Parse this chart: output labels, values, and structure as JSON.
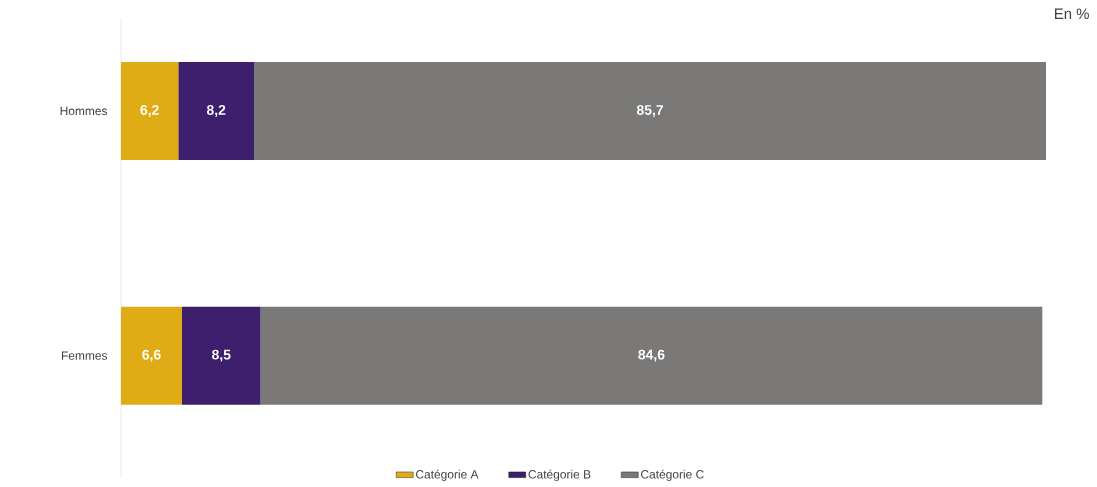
{
  "chart_data": {
    "type": "bar",
    "orientation": "horizontal",
    "stacked": true,
    "categories": [
      "Hommes",
      "Femmes"
    ],
    "series": [
      {
        "name": "Catégorie A",
        "color": "#e0ac16",
        "values": [
          6.2,
          6.6
        ],
        "value_labels": [
          "6,2",
          "6,6"
        ]
      },
      {
        "name": "Catégorie B",
        "color": "#3d1f6e",
        "values": [
          8.2,
          8.5
        ],
        "value_labels": [
          "8,2",
          "8,5"
        ]
      },
      {
        "name": "Catégorie C",
        "color": "#7a7978",
        "values": [
          85.7,
          84.6
        ],
        "value_labels": [
          "85,7",
          "84,6"
        ]
      }
    ],
    "legend": "bottom",
    "tick_labels": "y",
    "annotations": [
      "En %"
    ]
  }
}
